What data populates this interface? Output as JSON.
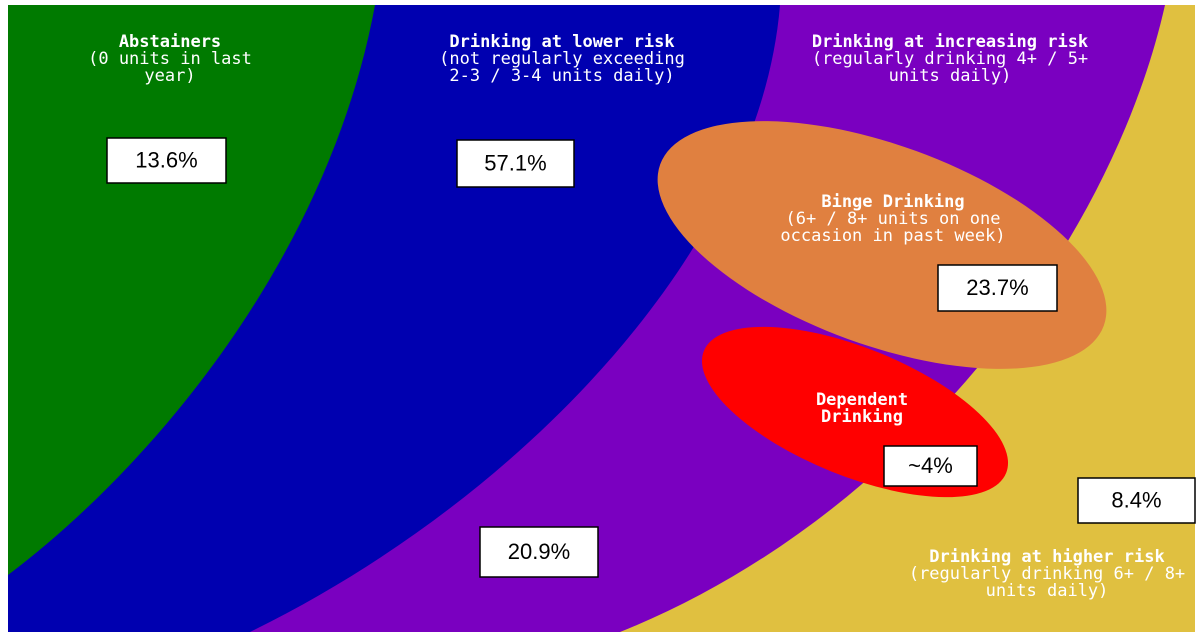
{
  "regions": [
    {
      "title": [
        "Abstainers"
      ],
      "subtitle": [
        "(0 units in last",
        "year)"
      ],
      "value": "13.6%"
    },
    {
      "title": [
        "Drinking at lower risk"
      ],
      "subtitle": [
        "(not regularly exceeding",
        "2-3 / 3-4 units daily)"
      ],
      "value": "57.1%"
    },
    {
      "title": [
        "Drinking at increasing risk"
      ],
      "subtitle": [
        "(regularly drinking 4+ / 5+",
        "units daily)"
      ],
      "value": "20.9%"
    },
    {
      "title": [
        "Binge Drinking"
      ],
      "subtitle": [
        "(6+ / 8+ units on one",
        "occasion in past week)"
      ],
      "value": "23.7%"
    },
    {
      "title": [
        "Dependent",
        "Drinking"
      ],
      "subtitle": [],
      "value": "~4%"
    },
    {
      "title": [
        "Drinking at higher risk"
      ],
      "subtitle": [
        "(regularly drinking 6+ / 8+",
        "units daily)"
      ],
      "value": "8.4%"
    }
  ]
}
